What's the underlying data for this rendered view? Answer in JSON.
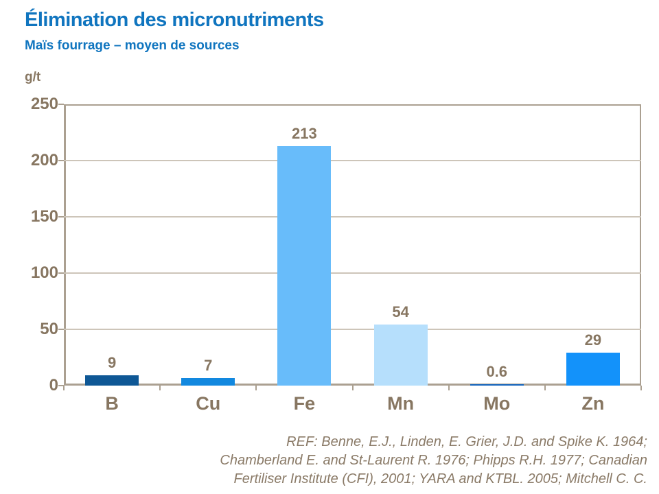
{
  "header": {
    "title": "Élimination des micronutriments",
    "subtitle": "Maïs fourrage – moyen de sources"
  },
  "chart_data": {
    "type": "bar",
    "title": "Élimination des micronutriments",
    "subtitle": "Maïs fourrage – moyen de sources",
    "ylabel": "g/t",
    "xlabel": "",
    "categories": [
      "B",
      "Cu",
      "Fe",
      "Mn",
      "Mo",
      "Zn"
    ],
    "values": [
      9,
      7,
      213,
      54,
      0.6,
      29
    ],
    "value_labels": [
      "9",
      "7",
      "213",
      "54",
      "0.6",
      "29"
    ],
    "bar_colors": [
      "#0E5795",
      "#1288DF",
      "#68BCFA",
      "#B6DFFC",
      "#1565BE",
      "#1392FA"
    ],
    "ylim": [
      0,
      250
    ],
    "yticks": [
      0,
      50,
      100,
      150,
      200,
      250
    ],
    "grid": true,
    "legend": "none"
  },
  "footer": {
    "reference_lines": [
      "REF: Benne, E.J., Linden, E. Grier, J.D. and Spike K. 1964;",
      "Chamberland  E. and St-Laurent R. 1976; Phipps R.H. 1977; Canadian",
      "Fertiliser Institute  (CFI),  2001; YARA and KTBL. 2005; Mitchell C. C."
    ]
  },
  "colors": {
    "title_text": "#1075BF",
    "axis_text": "#877661",
    "frame": "#ABA091",
    "gridline": "#CDC5B9",
    "reference_text": "#8A7A67"
  }
}
